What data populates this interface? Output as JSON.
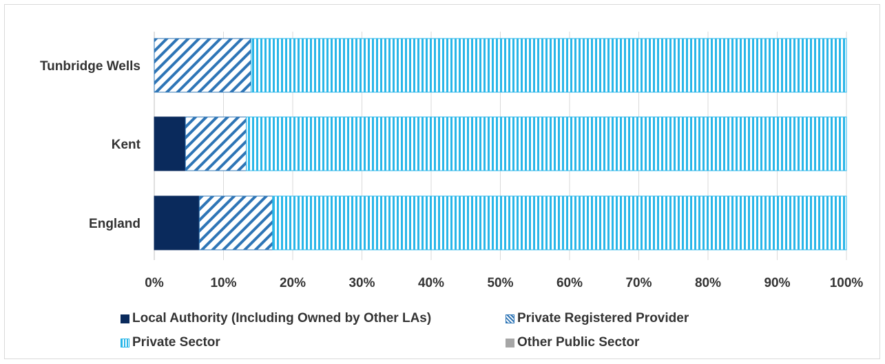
{
  "chart_data": {
    "type": "bar",
    "orientation": "horizontal",
    "stacked": true,
    "categories": [
      "Tunbridge Wells",
      "Kent",
      "England"
    ],
    "series": [
      {
        "name": "Local Authority (Including Owned by Other LAs)",
        "values": [
          0,
          4.5,
          6.5
        ],
        "color": "#0a2a5c",
        "pattern": "solid"
      },
      {
        "name": "Private Registered Provider",
        "values": [
          14,
          8.8,
          10.6
        ],
        "color": "#2e75b6",
        "pattern": "diagonal-stripes"
      },
      {
        "name": "Private Sector",
        "values": [
          86,
          86.7,
          82.9
        ],
        "color": "#29b6e8",
        "pattern": "vertical-stripes"
      },
      {
        "name": "Other Public Sector",
        "values": [
          0,
          0,
          0
        ],
        "color": "#a6a6a6",
        "pattern": "solid"
      }
    ],
    "xlim": [
      0,
      100
    ],
    "xticks": [
      "0%",
      "10%",
      "20%",
      "30%",
      "40%",
      "50%",
      "60%",
      "70%",
      "80%",
      "90%",
      "100%"
    ],
    "grid": true,
    "legend_position": "bottom"
  }
}
